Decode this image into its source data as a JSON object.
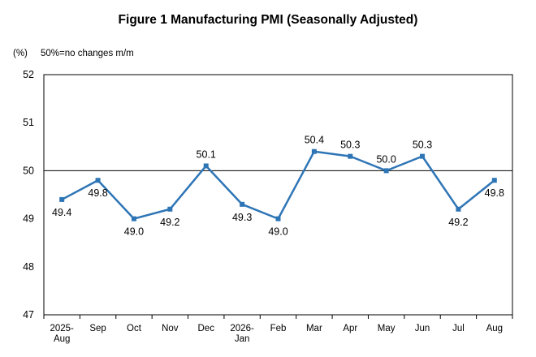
{
  "chart_data": {
    "type": "line",
    "title": "Figure 1 Manufacturing PMI (Seasonally Adjusted)",
    "unit_label": "(%)",
    "note": "50%=no changes m/m",
    "xlabel": "",
    "ylabel": "",
    "categories": [
      [
        "2025-",
        "Aug"
      ],
      [
        "Sep"
      ],
      [
        "Oct"
      ],
      [
        "Nov"
      ],
      [
        "Dec"
      ],
      [
        "2026-",
        "Jan"
      ],
      [
        "Feb"
      ],
      [
        "Mar"
      ],
      [
        "Apr"
      ],
      [
        "May"
      ],
      [
        "Jun"
      ],
      [
        "Jul"
      ],
      [
        "Aug"
      ]
    ],
    "values": [
      49.4,
      49.8,
      49.0,
      49.2,
      50.1,
      49.3,
      49.0,
      50.4,
      50.3,
      50.0,
      50.3,
      49.2,
      49.8
    ],
    "labels": [
      "49.4",
      "49.8",
      "49.0",
      "49.2",
      "50.1",
      "49.3",
      "49.0",
      "50.4",
      "50.3",
      "50.0",
      "50.3",
      "49.2",
      "49.8"
    ],
    "label_pos": [
      "below",
      "below",
      "below",
      "below",
      "above",
      "below",
      "below",
      "above",
      "above",
      "above",
      "above",
      "below",
      "below"
    ],
    "ylim": [
      47,
      52
    ],
    "yticks": [
      47,
      48,
      49,
      50,
      51,
      52
    ],
    "reference_line": 50,
    "grid": false,
    "legend": "none",
    "colors": {
      "line": "#2E75B6",
      "reference": "#000000",
      "frame": "#000000"
    }
  }
}
